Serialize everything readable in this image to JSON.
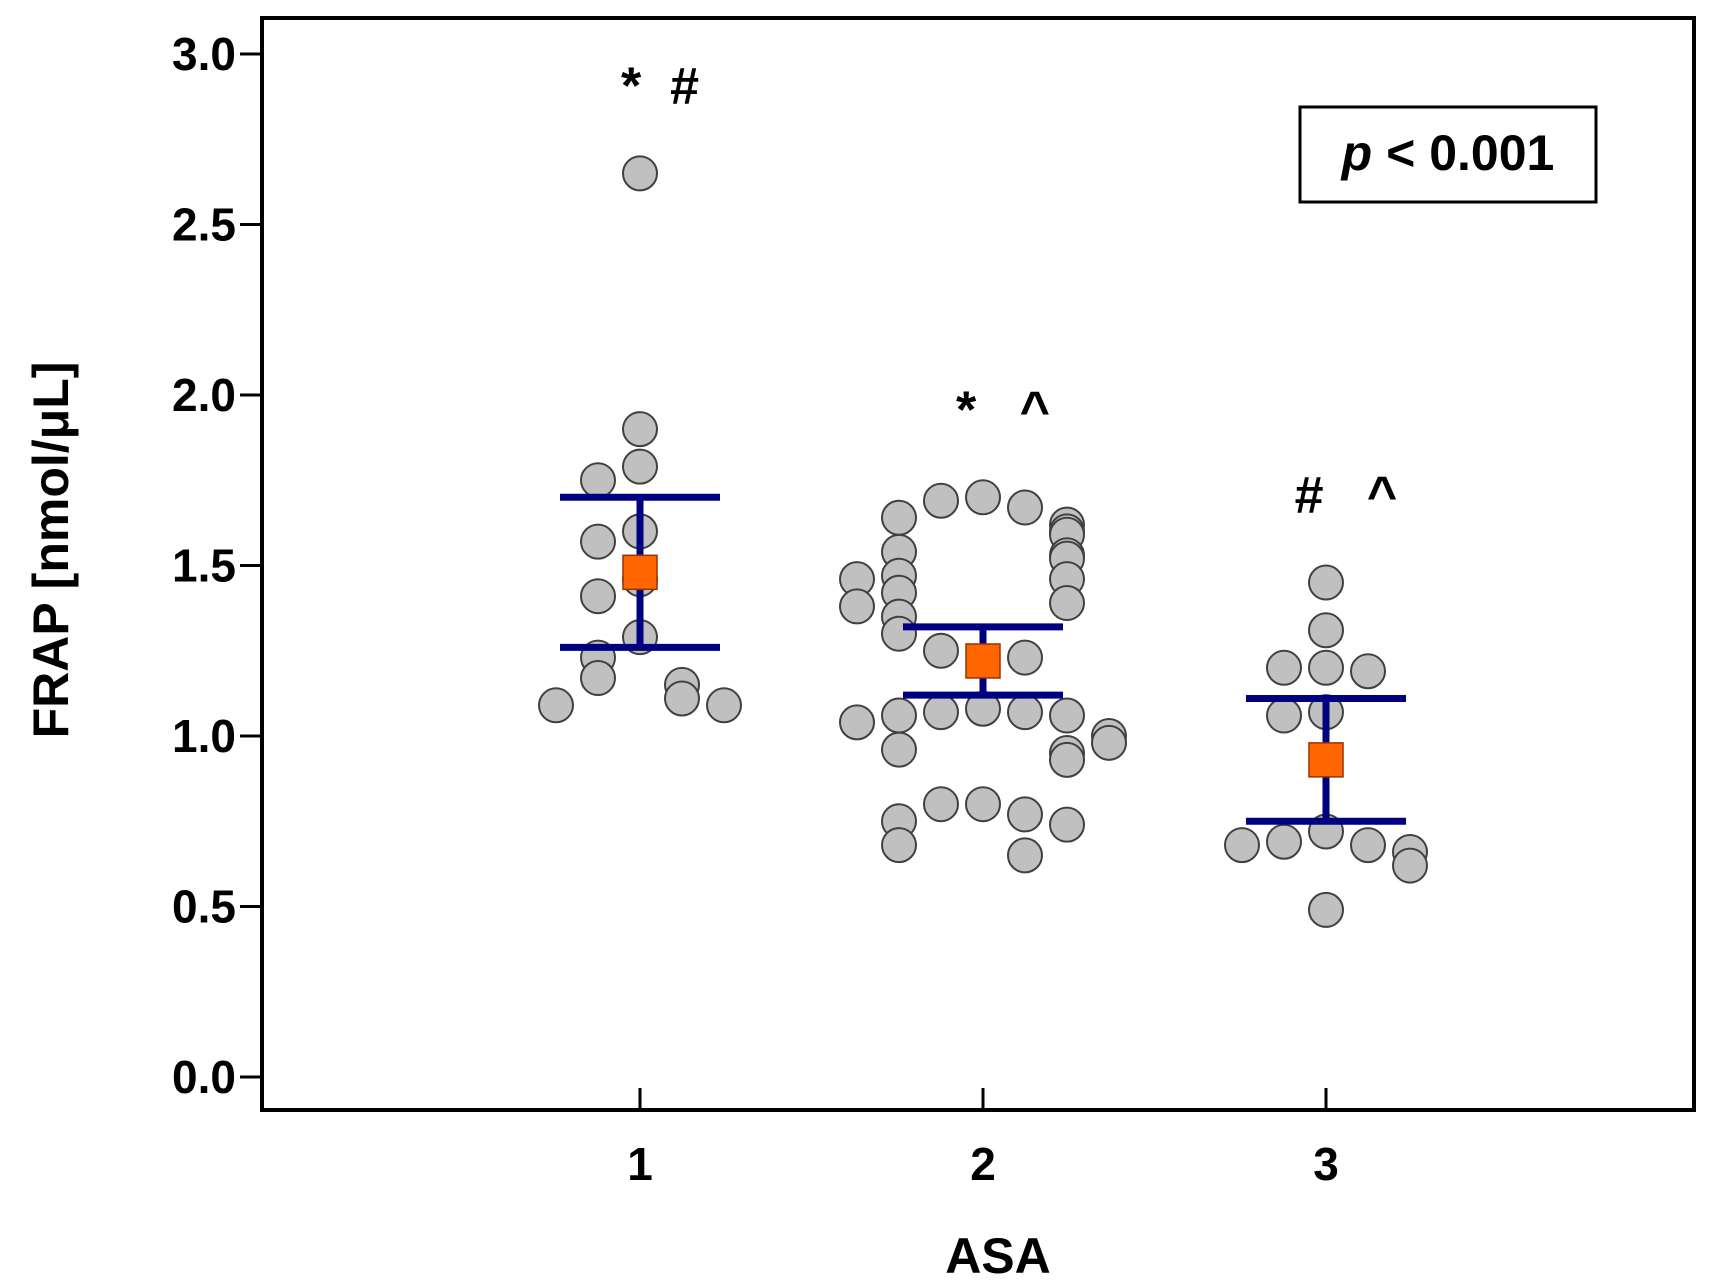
{
  "chart_data": {
    "type": "scatter",
    "subtype": "dot-plot with mean and error bars",
    "xlabel": "ASA",
    "ylabel": "FRAP [nmol/μL]",
    "ylim": [
      0,
      3.0
    ],
    "yticks": [
      "0.0",
      "0.5",
      "1.0",
      "1.5",
      "2.0",
      "2.5",
      "3.0"
    ],
    "categories": [
      "1",
      "2",
      "3"
    ],
    "annotation": {
      "p_symbol": "p",
      "p_rest": " < 0.001"
    },
    "colors": {
      "point_fill": "#c0c0c0",
      "point_stroke": "#404040",
      "mean_fill": "#ff6600",
      "errorbar": "#000080",
      "axis": "#000000"
    },
    "groups": [
      {
        "category": "1",
        "mean": 1.48,
        "error_upper": 1.7,
        "error_lower": 1.26,
        "significance": "*  #",
        "points": [
          2.65,
          1.9,
          1.79,
          1.75,
          1.6,
          1.57,
          1.46,
          1.41,
          1.29,
          1.23,
          1.17,
          1.15,
          1.11,
          1.09,
          1.09
        ]
      },
      {
        "category": "2",
        "mean": 1.22,
        "error_upper": 1.32,
        "error_lower": 1.12,
        "significance": "*   ^",
        "points": [
          1.7,
          1.69,
          1.67,
          1.64,
          1.62,
          1.6,
          1.59,
          1.54,
          1.53,
          1.52,
          1.47,
          1.46,
          1.46,
          1.42,
          1.39,
          1.38,
          1.35,
          1.3,
          1.25,
          1.23,
          1.08,
          1.07,
          1.07,
          1.06,
          1.06,
          1.04,
          1.0,
          0.98,
          0.96,
          0.95,
          0.93,
          0.8,
          0.8,
          0.77,
          0.75,
          0.74,
          0.68,
          0.65
        ]
      },
      {
        "category": "3",
        "mean": 0.93,
        "error_upper": 1.11,
        "error_lower": 0.75,
        "significance": "#   ^",
        "points": [
          1.45,
          1.31,
          1.2,
          1.2,
          1.19,
          1.07,
          1.06,
          0.72,
          0.69,
          0.68,
          0.68,
          0.66,
          0.62,
          0.49
        ]
      }
    ]
  }
}
